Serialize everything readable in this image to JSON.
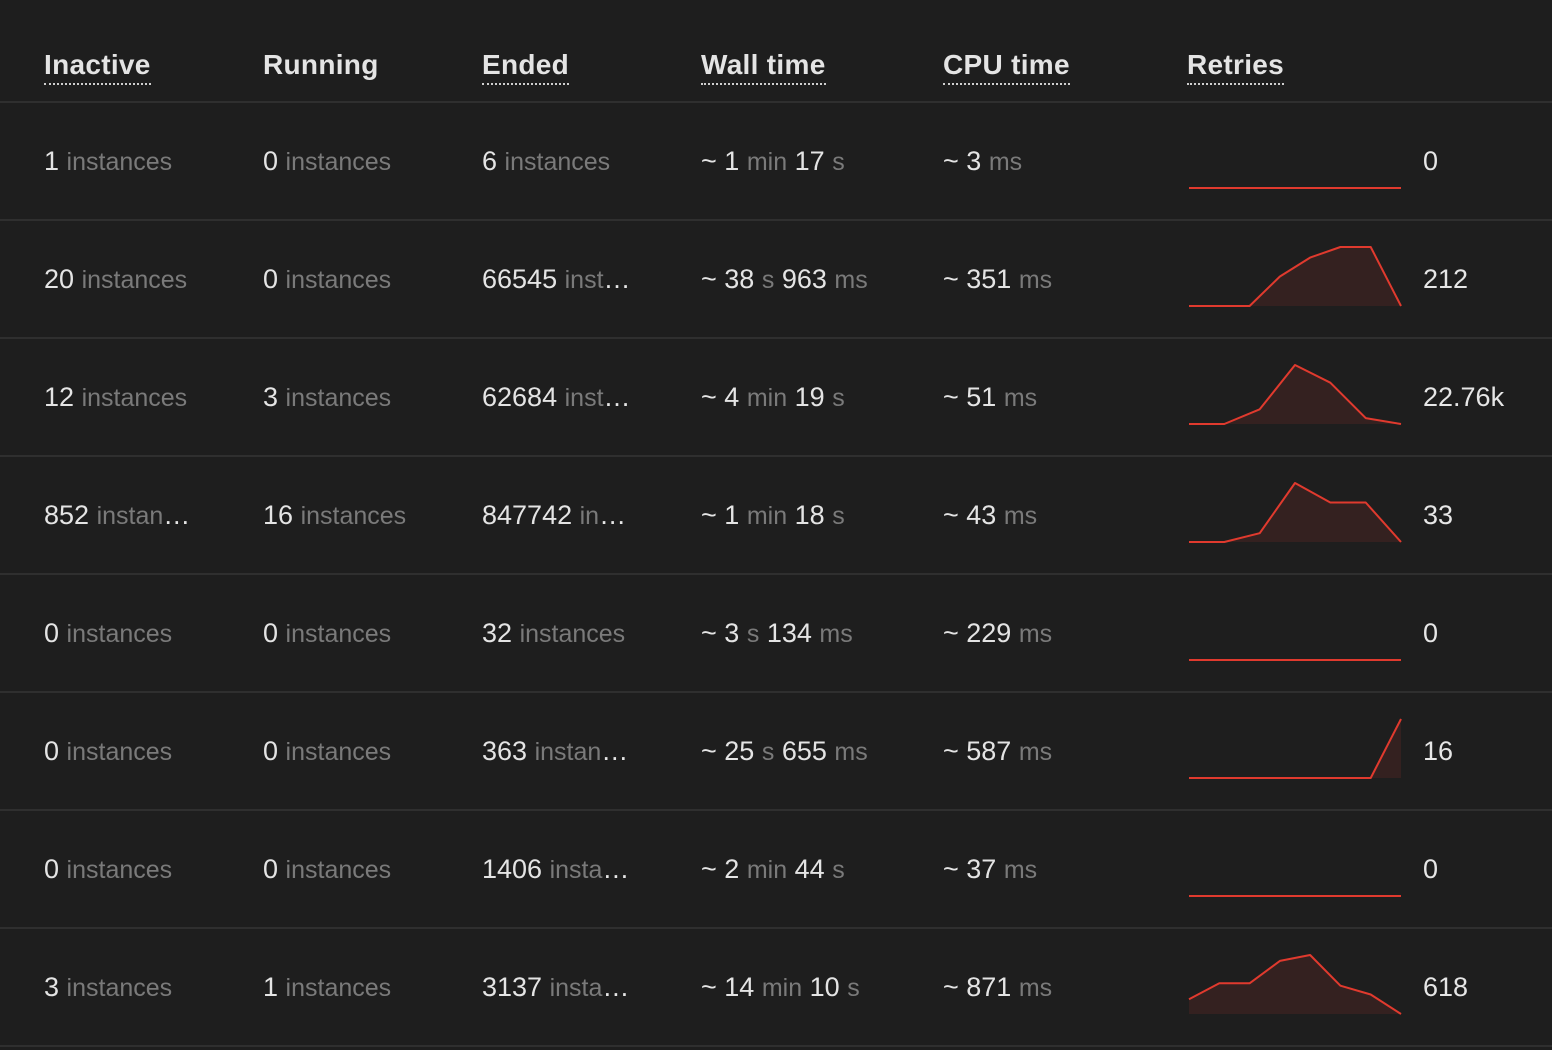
{
  "header": {
    "inactive": "Inactive",
    "running": "Running",
    "ended": "Ended",
    "wall_time": "Wall time",
    "cpu_time": "CPU time",
    "retries": "Retries"
  },
  "colors": {
    "background": "#1e1e1e",
    "sparkline": "#e03a2e",
    "sparkline_fill": "#3a2220",
    "muted_unit": "#7a7a7a",
    "divider": "#2f2f2f"
  },
  "rows": [
    {
      "inactive": {
        "n": "1",
        "u": "instances"
      },
      "running": {
        "n": "0",
        "u": "instances"
      },
      "ended": {
        "n": "6",
        "u": "instances"
      },
      "wall": [
        {
          "n": "~ 1",
          "u": "min"
        },
        {
          "n": "17",
          "u": "s"
        }
      ],
      "cpu": [
        {
          "n": "~ 3",
          "u": "ms"
        }
      ],
      "retries": "0",
      "spark": [
        0,
        0,
        0,
        0,
        0,
        0,
        0,
        0
      ]
    },
    {
      "inactive": {
        "n": "20",
        "u": "instances"
      },
      "running": {
        "n": "0",
        "u": "instances"
      },
      "ended": {
        "n": "66545",
        "u": "instances"
      },
      "wall": [
        {
          "n": "~ 38",
          "u": "s"
        },
        {
          "n": "963",
          "u": "ms"
        }
      ],
      "cpu": [
        {
          "n": "~ 351",
          "u": "ms"
        }
      ],
      "retries": "212",
      "spark": [
        0,
        0,
        0,
        0.5,
        0.82,
        1,
        1,
        0
      ]
    },
    {
      "inactive": {
        "n": "12",
        "u": "instances"
      },
      "running": {
        "n": "3",
        "u": "instances"
      },
      "ended": {
        "n": "62684",
        "u": "instances"
      },
      "wall": [
        {
          "n": "~ 4",
          "u": "min"
        },
        {
          "n": "19",
          "u": "s"
        }
      ],
      "cpu": [
        {
          "n": "~ 51",
          "u": "ms"
        }
      ],
      "retries": "22.76k",
      "spark": [
        0,
        0,
        0.25,
        1,
        0.7,
        0.1,
        0
      ]
    },
    {
      "inactive": {
        "n": "852",
        "u": "instances"
      },
      "running": {
        "n": "16",
        "u": "instances"
      },
      "ended": {
        "n": "847742",
        "u": "instances"
      },
      "wall": [
        {
          "n": "~ 1",
          "u": "min"
        },
        {
          "n": "18",
          "u": "s"
        }
      ],
      "cpu": [
        {
          "n": "~ 43",
          "u": "ms"
        }
      ],
      "retries": "33",
      "spark": [
        0,
        0,
        0.15,
        1,
        0.67,
        0.67,
        0
      ]
    },
    {
      "inactive": {
        "n": "0",
        "u": "instances"
      },
      "running": {
        "n": "0",
        "u": "instances"
      },
      "ended": {
        "n": "32",
        "u": "instances"
      },
      "wall": [
        {
          "n": "~ 3",
          "u": "s"
        },
        {
          "n": "134",
          "u": "ms"
        }
      ],
      "cpu": [
        {
          "n": "~ 229",
          "u": "ms"
        }
      ],
      "retries": "0",
      "spark": [
        0,
        0,
        0,
        0,
        0,
        0,
        0,
        0
      ]
    },
    {
      "inactive": {
        "n": "0",
        "u": "instances"
      },
      "running": {
        "n": "0",
        "u": "instances"
      },
      "ended": {
        "n": "363",
        "u": "instances"
      },
      "wall": [
        {
          "n": "~ 25",
          "u": "s"
        },
        {
          "n": "655",
          "u": "ms"
        }
      ],
      "cpu": [
        {
          "n": "~ 587",
          "u": "ms"
        }
      ],
      "retries": "16",
      "spark": [
        0,
        0,
        0,
        0,
        0,
        0,
        0,
        1
      ]
    },
    {
      "inactive": {
        "n": "0",
        "u": "instances"
      },
      "running": {
        "n": "0",
        "u": "instances"
      },
      "ended": {
        "n": "1406",
        "u": "instances"
      },
      "wall": [
        {
          "n": "~ 2",
          "u": "min"
        },
        {
          "n": "44",
          "u": "s"
        }
      ],
      "cpu": [
        {
          "n": "~ 37",
          "u": "ms"
        }
      ],
      "retries": "0",
      "spark": [
        0,
        0,
        0,
        0,
        0,
        0,
        0,
        0
      ]
    },
    {
      "inactive": {
        "n": "3",
        "u": "instances"
      },
      "running": {
        "n": "1",
        "u": "instances"
      },
      "ended": {
        "n": "3137",
        "u": "instances"
      },
      "wall": [
        {
          "n": "~ 14",
          "u": "min"
        },
        {
          "n": "10",
          "u": "s"
        }
      ],
      "cpu": [
        {
          "n": "~ 871",
          "u": "ms"
        }
      ],
      "retries": "618",
      "spark": [
        0.25,
        0.52,
        0.52,
        0.9,
        1,
        0.48,
        0.33,
        0
      ]
    }
  ]
}
